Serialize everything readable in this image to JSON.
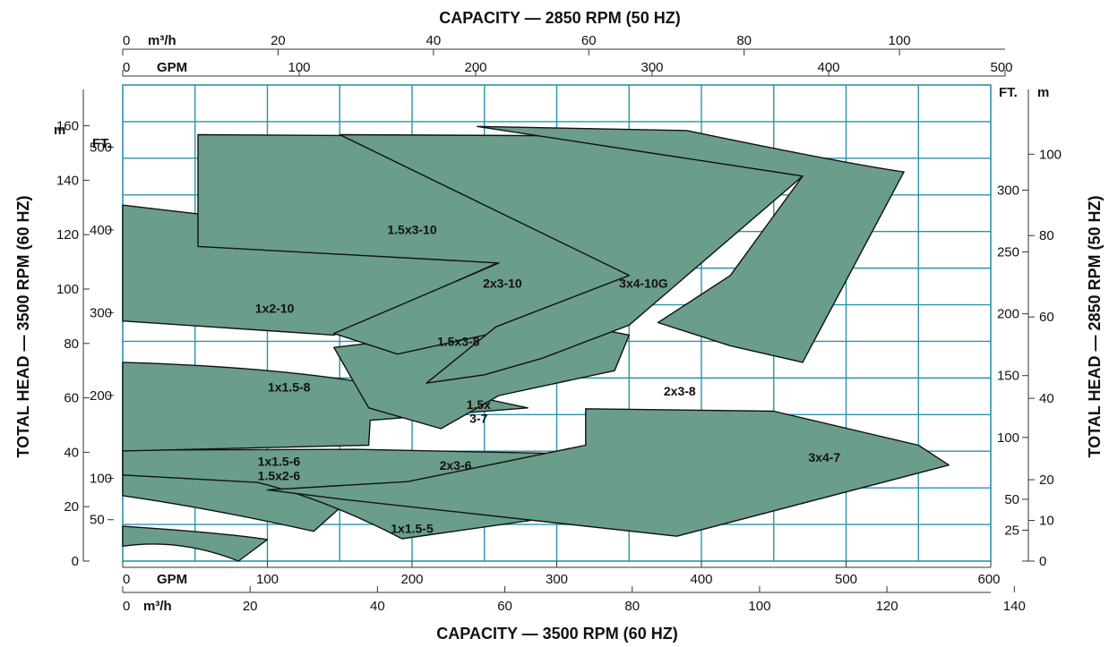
{
  "chart_data": {
    "type": "area",
    "title": "CAPACITY — 2850 RPM (50 HZ)",
    "xlabel": "CAPACITY — 3500 RPM (60 HZ)",
    "ylabel": "TOTAL HEAD — 3500 RPM (60 HZ)",
    "ylabel_right": "TOTAL HEAD — 2850 RPM (50 HZ)",
    "grid": true,
    "colors": {
      "fill": "#6a9d8a",
      "grid": "#2a93ad",
      "outline": "#111111"
    },
    "axes": {
      "bottom_gpm": {
        "unit": "GPM",
        "ticks": [
          "0",
          "100",
          "200",
          "300",
          "400",
          "500",
          "600"
        ],
        "range": [
          0,
          600
        ]
      },
      "bottom_m3h": {
        "unit": "m³/h",
        "ticks": [
          "0",
          "20",
          "40",
          "60",
          "80",
          "100",
          "120",
          "140"
        ],
        "range": [
          0,
          136.3
        ]
      },
      "top_gpm": {
        "unit": "GPM",
        "ticks": [
          "0",
          "100",
          "200",
          "300",
          "400",
          "500"
        ],
        "range": [
          0,
          500
        ]
      },
      "top_m3h": {
        "unit": "m³/h",
        "ticks": [
          "0",
          "20",
          "40",
          "60",
          "80",
          "100"
        ],
        "range": [
          0,
          113.6
        ]
      },
      "left_m": {
        "unit": "m",
        "ticks": [
          "0",
          "20",
          "40",
          "60",
          "80",
          "100",
          "120",
          "140",
          "160"
        ],
        "range": [
          0,
          175
        ]
      },
      "left_ft": {
        "unit": "FT.",
        "ticks": [
          "0",
          "50",
          "100",
          "200",
          "300",
          "400",
          "500"
        ],
        "range": [
          0,
          575
        ]
      },
      "right_ft": {
        "unit": "FT.",
        "ticks": [
          "0",
          "25",
          "50",
          "100",
          "150",
          "200",
          "250",
          "300"
        ],
        "range": [
          0,
          385
        ]
      },
      "right_m": {
        "unit": "m",
        "ticks": [
          "0",
          "10",
          "20",
          "40",
          "60",
          "80",
          "100"
        ],
        "range": [
          0,
          117
        ]
      }
    },
    "regions": [
      {
        "name": "1x1.5-5",
        "gpm": [
          0,
          66,
          83,
          50,
          0
        ],
        "ft": [
          42,
          34,
          26,
          0,
          0
        ]
      },
      {
        "name": "1x1.5-6 / 1.5x2-6",
        "gpm": [
          0,
          93,
          173,
          132,
          0
        ],
        "ft": [
          45,
          69,
          100,
          132,
          134
        ]
      },
      {
        "name": "2x3-6",
        "gpm": [
          0,
          312,
          527,
          193,
          0
        ],
        "ft": [
          55,
          68,
          135,
          27,
          134
        ]
      },
      {
        "name": "3x4-7",
        "gpm": [
          0,
          440,
          571,
          383,
          525
        ],
        "ft": [
          65,
          120,
          115,
          30,
          180
        ]
      },
      {
        "name": "1x1.5-8",
        "gpm": [
          0,
          170,
          171,
          280,
          0
        ],
        "ft": [
          131,
          183,
          230,
          233,
          240
        ]
      },
      {
        "name": "1.5x3-8",
        "gpm": [
          146,
          366,
          260,
          140,
          387
        ],
        "ft": [
          190,
          209,
          240,
          270,
          270
        ]
      },
      {
        "name": "1x2-10",
        "gpm": [
          0,
          155,
          285,
          146,
          0
        ],
        "ft": [
          252,
          380,
          370,
          285,
          430
        ]
      },
      {
        "name": "1.5x3-10",
        "gpm": [
          52,
          259,
          372,
          250,
          52
        ],
        "ft": [
          375,
          360,
          480,
          513,
          515
        ]
      },
      {
        "name": "2x3-10",
        "gpm": [
          150,
          350,
          470,
          390,
          150
        ],
        "ft": [
          360,
          392,
          460,
          513,
          515
        ]
      },
      {
        "name": "3x4-10G",
        "gpm": [
          245,
          540,
          530,
          370,
          245
        ],
        "ft": [
          400,
          390,
          500,
          513,
          525
        ]
      }
    ],
    "region_labels": [
      {
        "key": "1x1.5-5",
        "text": "1x1.5-5"
      },
      {
        "key": "1x1.5-6",
        "text": "1x1.5-6"
      },
      {
        "key": "1.5x2-6",
        "text": "1.5x2-6"
      },
      {
        "key": "2x3-6",
        "text": "2x3-6"
      },
      {
        "key": "3x4-7",
        "text": "3x4-7"
      },
      {
        "key": "1x1.5-8",
        "text": "1x1.5-8"
      },
      {
        "key": "1.5x-a",
        "text": "1.5x"
      },
      {
        "key": "1.5x-b",
        "text": "3-7"
      },
      {
        "key": "2x3-8",
        "text": "2x3-8"
      },
      {
        "key": "1.5x3-8",
        "text": "1.5x3-8"
      },
      {
        "key": "1x2-10",
        "text": "1x2-10"
      },
      {
        "key": "1.5x3-10",
        "text": "1.5x3-10"
      },
      {
        "key": "2x3-10",
        "text": "2x3-10"
      },
      {
        "key": "3x4-10G",
        "text": "3x4-10G"
      }
    ]
  }
}
